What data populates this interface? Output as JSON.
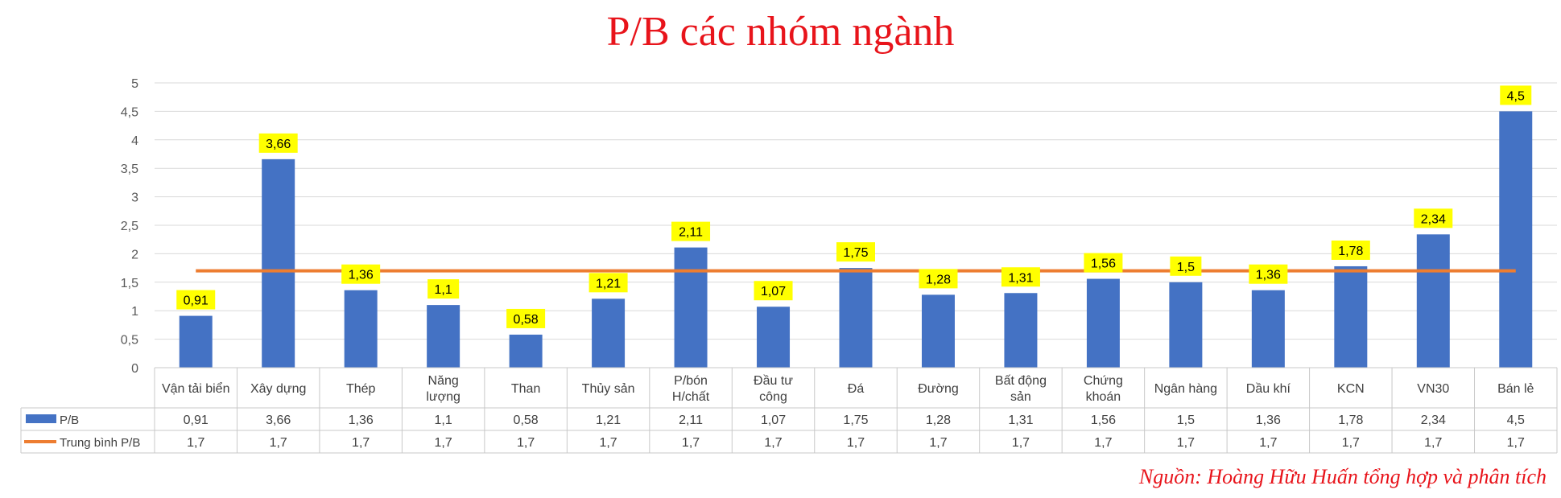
{
  "title": "P/B các nhóm ngành",
  "source": "Nguồn: Hoàng Hữu Huấn tổng hợp và phân tích",
  "chart_data": {
    "type": "bar",
    "categories": [
      "Vận tải biển",
      "Xây dựng",
      "Thép",
      "Năng lượng",
      "Than",
      "Thủy sản",
      "P/bón H/chất",
      "Đầu tư công",
      "Đá",
      "Đường",
      "Bất động sản",
      "Chứng khoán",
      "Ngân hàng",
      "Dầu khí",
      "KCN",
      "VN30",
      "Bán lẻ"
    ],
    "category_lines": [
      [
        "Vận tải biển"
      ],
      [
        "Xây dựng"
      ],
      [
        "Thép"
      ],
      [
        "Năng",
        "lượng"
      ],
      [
        "Than"
      ],
      [
        "Thủy sản"
      ],
      [
        "P/bón",
        "H/chất"
      ],
      [
        "Đầu tư",
        "công"
      ],
      [
        "Đá"
      ],
      [
        "Đường"
      ],
      [
        "Bất động",
        "sản"
      ],
      [
        "Chứng",
        "khoán"
      ],
      [
        "Ngân hàng"
      ],
      [
        "Dầu khí"
      ],
      [
        "KCN"
      ],
      [
        "VN30"
      ],
      [
        "Bán lẻ"
      ]
    ],
    "series": [
      {
        "name": "P/B",
        "type": "bar",
        "color": "#4472c4",
        "values": [
          0.91,
          3.66,
          1.36,
          1.1,
          0.58,
          1.21,
          2.11,
          1.07,
          1.75,
          1.28,
          1.31,
          1.56,
          1.5,
          1.36,
          1.78,
          2.34,
          4.5
        ],
        "labels": [
          "0,91",
          "3,66",
          "1,36",
          "1,1",
          "0,58",
          "1,21",
          "2,11",
          "1,07",
          "1,75",
          "1,28",
          "1,31",
          "1,56",
          "1,5",
          "1,36",
          "1,78",
          "2,34",
          "4,5"
        ]
      },
      {
        "name": "Trung bình P/B",
        "type": "line",
        "color": "#ed7d31",
        "values": [
          1.7,
          1.7,
          1.7,
          1.7,
          1.7,
          1.7,
          1.7,
          1.7,
          1.7,
          1.7,
          1.7,
          1.7,
          1.7,
          1.7,
          1.7,
          1.7,
          1.7
        ],
        "labels": [
          "1,7",
          "1,7",
          "1,7",
          "1,7",
          "1,7",
          "1,7",
          "1,7",
          "1,7",
          "1,7",
          "1,7",
          "1,7",
          "1,7",
          "1,7",
          "1,7",
          "1,7",
          "1,7",
          "1,7"
        ]
      }
    ],
    "yticks": [
      "0",
      "0,5",
      "1",
      "1,5",
      "2",
      "2,5",
      "3",
      "3,5",
      "4",
      "4,5",
      "5"
    ],
    "ylim": [
      0,
      5
    ],
    "grid": true,
    "data_table": true,
    "data_label_color": "#ffff00"
  }
}
